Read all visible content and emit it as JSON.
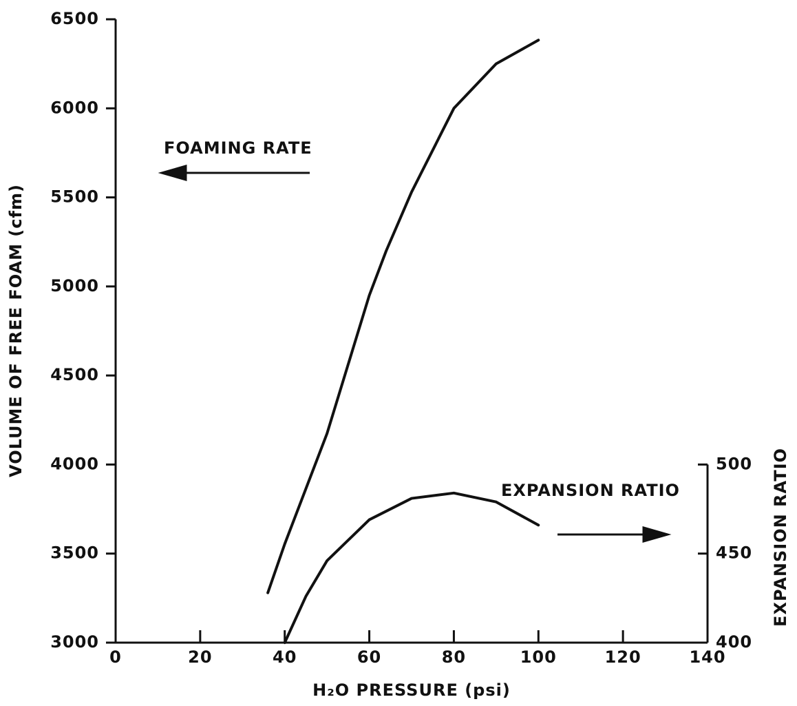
{
  "chart_data": {
    "type": "line",
    "x_label": "H₂O PRESSURE (psi)",
    "y_label": "VOLUME OF FREE FOAM  (cfm)",
    "y2_label": "EXPANSION RATIO",
    "annotations": [
      "FOAMING RATE",
      "EXPANSION RATIO"
    ],
    "xlim": [
      0,
      140
    ],
    "xticks": [
      0,
      20,
      40,
      60,
      80,
      100,
      120,
      140
    ],
    "ylim": [
      3000,
      6500
    ],
    "yticks": [
      3000,
      3500,
      4000,
      4500,
      5000,
      5500,
      6000,
      6500
    ],
    "y2lim": [
      400,
      750
    ],
    "y2ticks": [
      400,
      450,
      500
    ],
    "grid": false,
    "series": [
      {
        "name": "FOAMING RATE",
        "color": "#111111",
        "x": [
          36,
          40,
          50,
          60,
          64,
          70,
          80,
          90,
          100
        ],
        "values": [
          3280,
          3554,
          4174,
          4950,
          5200,
          5530,
          6000,
          6250,
          6383
        ]
      },
      {
        "name": "EXPANSION RATIO",
        "color": "#111111",
        "axis": "y2",
        "x": [
          40,
          45,
          50,
          60,
          70,
          80,
          90,
          100
        ],
        "values": [
          400,
          426,
          446,
          469,
          481,
          484,
          479,
          466
        ]
      }
    ]
  }
}
